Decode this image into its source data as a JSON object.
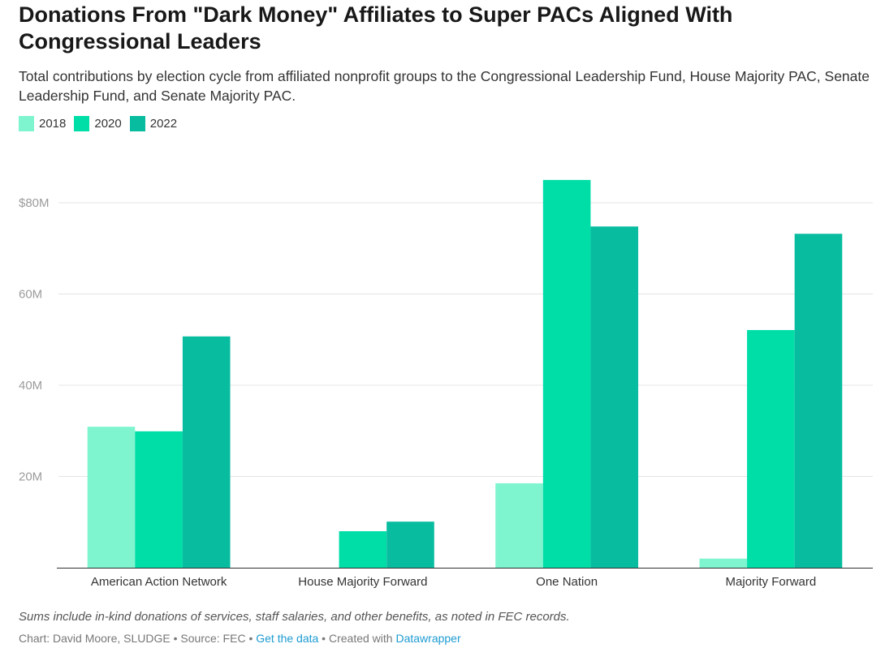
{
  "title": "Donations From \"Dark Money\" Affiliates to Super PACs Aligned With Congressional Leaders",
  "subtitle": "Total contributions by election cycle from affiliated nonprofit groups to the Congressional Leadership Fund, House Majority PAC, Senate Leadership Fund, and Senate Majority PAC.",
  "note": "Sums include in-kind donations of services, staff salaries, and other benefits, as noted in FEC records.",
  "footer": {
    "credit": "Chart: David Moore, SLUDGE • Source: FEC • ",
    "get_data": "Get the data",
    "sep": " • Created with ",
    "datawrapper": "Datawrapper"
  },
  "chart_data": {
    "type": "bar",
    "title": "Donations From \"Dark Money\" Affiliates to Super PACs Aligned With Congressional Leaders",
    "categories": [
      "American Action Network",
      "House Majority Forward",
      "One Nation",
      "Majority Forward"
    ],
    "series": [
      {
        "name": "2018",
        "color": "#7ff5cf",
        "values": [
          30.9,
          0,
          18.5,
          2.0
        ]
      },
      {
        "name": "2020",
        "color": "#00dea8",
        "values": [
          29.9,
          8.0,
          85.0,
          52.1
        ]
      },
      {
        "name": "2022",
        "color": "#08bca0",
        "values": [
          50.7,
          10.1,
          74.8,
          73.2
        ]
      }
    ],
    "yticks": [
      20,
      40,
      60,
      80
    ],
    "ytick_labels": [
      "20M",
      "40M",
      "60M",
      "$80M"
    ],
    "ylim": [
      0,
      90
    ],
    "xlabel": "",
    "ylabel": "",
    "grid": true,
    "legend": "top-left"
  }
}
